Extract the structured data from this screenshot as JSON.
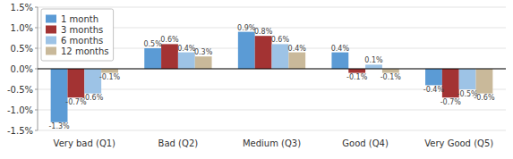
{
  "chart_data": {
    "type": "bar",
    "categories": [
      "Very bad (Q1)",
      "Bad (Q2)",
      "Medium (Q3)",
      "Good (Q4)",
      "Very Good (Q5)"
    ],
    "series": [
      {
        "name": "1 month",
        "color": "#5b9bd5",
        "values": [
          -1.3,
          0.5,
          0.9,
          0.4,
          -0.4
        ],
        "value_labels": [
          "-1.3%",
          "0.5%",
          "0.9%",
          "0.4%",
          "-0.4%"
        ]
      },
      {
        "name": "3 months",
        "color": "#a33333",
        "values": [
          -0.7,
          0.6,
          0.8,
          -0.1,
          -0.7
        ],
        "value_labels": [
          "-0.7%",
          "0.6%",
          "0.8%",
          "-0.1%",
          "-0.7%"
        ]
      },
      {
        "name": "6 months",
        "color": "#9dc3e6",
        "values": [
          -0.6,
          0.4,
          0.6,
          0.1,
          -0.5
        ],
        "value_labels": [
          "-0.6%",
          "0.4%",
          "0.6%",
          "0.1%",
          "-0.5%"
        ]
      },
      {
        "name": "12 months",
        "color": "#c9b99a",
        "values": [
          -0.1,
          0.3,
          0.4,
          -0.1,
          -0.6
        ],
        "value_labels": [
          "-0.1%",
          "0.3%",
          "0.4%",
          "-0.1%",
          "-0.6%"
        ]
      }
    ],
    "ylim": [
      -1.5,
      1.5
    ],
    "yticks": [
      {
        "value": -1.5,
        "label": "-1.5%"
      },
      {
        "value": -1.0,
        "label": "-1.0%"
      },
      {
        "value": -0.5,
        "label": "-0.5%"
      },
      {
        "value": 0.0,
        "label": "0.0%"
      },
      {
        "value": 0.5,
        "label": "0.5%"
      },
      {
        "value": 1.0,
        "label": "1.0%"
      },
      {
        "value": 1.5,
        "label": "1.5%"
      }
    ],
    "grid": true,
    "legend": "upper left",
    "data_labels": true
  }
}
